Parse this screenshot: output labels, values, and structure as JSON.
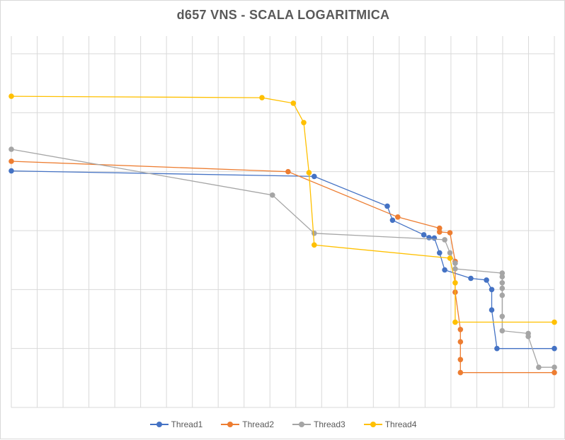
{
  "chart_data": {
    "type": "line",
    "title": "d657 VNS - SCALA LOGARITMICA",
    "xlabel": "",
    "ylabel": "",
    "grid": true,
    "y_scale": "log",
    "legend_position": "bottom",
    "series": [
      {
        "name": "Thread1",
        "color": "#4472c4",
        "points": [
          [
            0,
            10300
          ],
          [
            58,
            8300
          ],
          [
            72,
            2600
          ],
          [
            73,
            1500
          ],
          [
            79,
            850
          ],
          [
            80,
            760
          ],
          [
            81,
            750
          ],
          [
            82,
            420
          ],
          [
            83,
            215
          ],
          [
            88,
            155
          ],
          [
            91,
            145
          ],
          [
            92,
            100
          ],
          [
            92,
            45
          ],
          [
            93,
            10
          ],
          [
            104,
            10
          ]
        ]
      },
      {
        "name": "Thread2",
        "color": "#ed7d31",
        "points": [
          [
            0,
            15000
          ],
          [
            53,
            10000
          ],
          [
            74,
            1700
          ],
          [
            82,
            1100
          ],
          [
            82,
            950
          ],
          [
            84,
            920
          ],
          [
            85,
            300
          ],
          [
            85,
            90
          ],
          [
            86,
            21
          ],
          [
            86,
            13
          ],
          [
            86,
            6.5
          ],
          [
            86,
            3.9
          ],
          [
            104,
            3.9
          ]
        ]
      },
      {
        "name": "Thread3",
        "color": "#a5a5a5",
        "points": [
          [
            0,
            24000
          ],
          [
            50,
            4000
          ],
          [
            58,
            900
          ],
          [
            83,
            700
          ],
          [
            84,
            420
          ],
          [
            85,
            280
          ],
          [
            85,
            225
          ],
          [
            94,
            190
          ],
          [
            94,
            165
          ],
          [
            94,
            130
          ],
          [
            94,
            105
          ],
          [
            94,
            80
          ],
          [
            94,
            35
          ],
          [
            94,
            20
          ],
          [
            99,
            18
          ],
          [
            99,
            16
          ],
          [
            101,
            4.8
          ],
          [
            104,
            4.8
          ]
        ]
      },
      {
        "name": "Thread4",
        "color": "#ffc000",
        "points": [
          [
            0,
            190000
          ],
          [
            48,
            180000
          ],
          [
            54,
            145000
          ],
          [
            56,
            68000
          ],
          [
            57,
            9600
          ],
          [
            58,
            570
          ],
          [
            84,
            340
          ],
          [
            85,
            130
          ],
          [
            85,
            28
          ],
          [
            104,
            28
          ]
        ]
      }
    ],
    "x_range": [
      0,
      104
    ],
    "y_range_log10": [
      0,
      6.3
    ]
  }
}
